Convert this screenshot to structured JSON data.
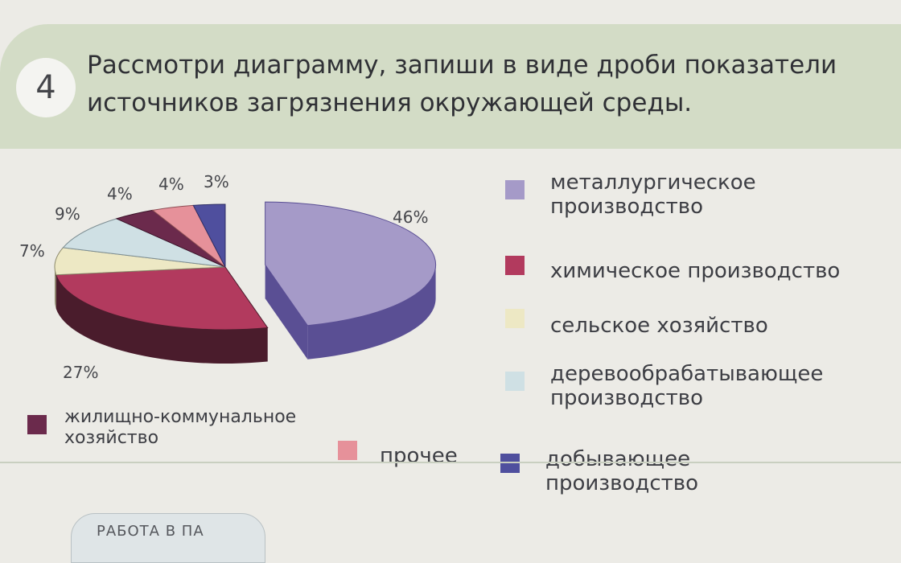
{
  "task": {
    "number": "4",
    "line1": "Рассмотри диаграмму, запиши в виде дроби показатели",
    "line2": "источников загрязнения окружающей среды."
  },
  "chart_data": {
    "type": "pie",
    "slices": [
      {
        "label": "металлургическое производство",
        "value": 46,
        "text": "46%",
        "color": "#a59ac8",
        "side": "#5a4f94"
      },
      {
        "label": "химическое производство",
        "value": 27,
        "text": "27%",
        "color": "#b23a5e",
        "side": "#4a1c2c"
      },
      {
        "label": "сельское хозяйство",
        "value": 7,
        "text": "7%",
        "color": "#ede8c4",
        "side": "#8d8a6c"
      },
      {
        "label": "деревообрабатывающее производство",
        "value": 9,
        "text": "9%",
        "color": "#cfe0e4",
        "side": "#7c8d92"
      },
      {
        "label": "жилищно-коммунальное хозяйство",
        "value": 4,
        "text": "4%",
        "color": "#6b2a4c",
        "side": "#3b1228"
      },
      {
        "label": "прочее",
        "value": 4,
        "text": "4%",
        "color": "#e6919a",
        "side": "#8e4f56"
      },
      {
        "label": "добывающее производство",
        "value": 3,
        "text": "3%",
        "color": "#4f4f9e",
        "side": "#2f2f66"
      }
    ]
  },
  "legend": {
    "metallurgy": {
      "line1": "металлургическое",
      "line2": "производство",
      "color": "#a59ac8"
    },
    "chemical": {
      "line1": "химическое производство",
      "color": "#b23a5e"
    },
    "agriculture": {
      "line1": "сельское хозяйство",
      "color": "#ede8c4"
    },
    "woodworking": {
      "line1": "деревообрабатывающее",
      "line2": "производство",
      "color": "#cfe0e4"
    },
    "housing": {
      "line1": "жилищно-коммунальное",
      "line2": "хозяйство",
      "color": "#6b2a4c"
    },
    "other": {
      "line1": "прочее",
      "color": "#e6919a"
    },
    "mining": {
      "line1": "добывающее",
      "line2": "производство",
      "color": "#4f4f9e"
    }
  },
  "footer": {
    "tab_text": "РАБОТА В ПА"
  }
}
